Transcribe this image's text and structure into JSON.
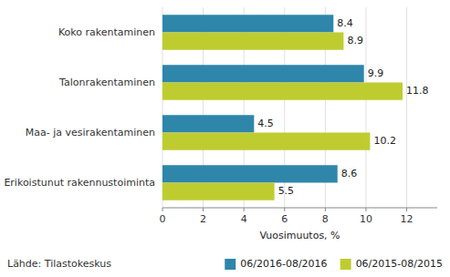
{
  "chart_data": {
    "type": "bar",
    "orientation": "horizontal",
    "categories": [
      "Koko rakentaminen",
      "Talonrakentaminen",
      "Maa- ja vesirakentaminen",
      "Erikoistunut rakennustoiminta"
    ],
    "series": [
      {
        "name": "06/2016-08/2016",
        "color": "#2E86AB",
        "values": [
          8.4,
          9.9,
          4.5,
          8.6
        ]
      },
      {
        "name": "06/2015-08/2015",
        "color": "#BFCC30",
        "values": [
          8.9,
          11.8,
          10.2,
          5.5
        ]
      }
    ],
    "xlabel": "Vuosimuutos, %",
    "xlim": [
      0,
      13.5
    ],
    "xticks": [
      0,
      2,
      4,
      6,
      8,
      10,
      12
    ],
    "grid": true,
    "legend": "lower right",
    "data_labels": true,
    "annotations": [
      "Lähde: Tilastokeskus"
    ]
  }
}
